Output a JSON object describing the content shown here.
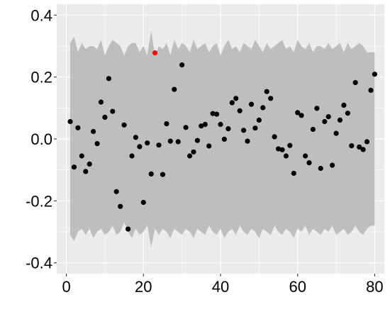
{
  "chart_data": {
    "type": "scatter",
    "title": "",
    "xlabel": "",
    "ylabel": "",
    "xlim": [
      -2.5,
      82.5
    ],
    "ylim": [
      -0.435,
      0.435
    ],
    "grid": true,
    "x_ticks": [
      0,
      20,
      40,
      60,
      80
    ],
    "x_tick_labels": [
      "0",
      "20",
      "40",
      "60",
      "80"
    ],
    "y_ticks": [
      -0.4,
      -0.2,
      0.0,
      0.2,
      0.4
    ],
    "y_tick_labels": [
      "-0.4",
      "-0.2",
      "0.0",
      "0.2",
      "0.4"
    ],
    "colors": {
      "panel": "#ebebeb",
      "grid": "#ffffff",
      "band": "#bebebe",
      "point": "#000000",
      "highlight": "#ff0000"
    },
    "band": {
      "x": [
        1,
        2,
        3,
        4,
        5,
        6,
        7,
        8,
        9,
        10,
        11,
        12,
        13,
        14,
        15,
        16,
        17,
        18,
        19,
        20,
        21,
        22,
        23,
        24,
        25,
        26,
        27,
        28,
        29,
        30,
        31,
        32,
        33,
        34,
        35,
        36,
        37,
        38,
        39,
        40,
        41,
        42,
        43,
        44,
        45,
        46,
        47,
        48,
        49,
        50,
        51,
        52,
        53,
        54,
        55,
        56,
        57,
        58,
        59,
        60,
        61,
        62,
        63,
        64,
        65,
        66,
        67,
        68,
        69,
        70,
        71,
        72,
        73,
        74,
        75,
        76,
        77,
        78,
        79,
        80
      ],
      "upper": [
        0.31,
        0.33,
        0.28,
        0.31,
        0.29,
        0.3,
        0.3,
        0.29,
        0.32,
        0.27,
        0.3,
        0.32,
        0.31,
        0.3,
        0.27,
        0.3,
        0.31,
        0.31,
        0.28,
        0.3,
        0.27,
        0.35,
        0.27,
        0.3,
        0.29,
        0.31,
        0.27,
        0.32,
        0.29,
        0.31,
        0.3,
        0.28,
        0.32,
        0.29,
        0.3,
        0.31,
        0.28,
        0.3,
        0.31,
        0.27,
        0.3,
        0.32,
        0.29,
        0.3,
        0.28,
        0.31,
        0.3,
        0.29,
        0.32,
        0.3,
        0.28,
        0.31,
        0.29,
        0.3,
        0.31,
        0.32,
        0.29,
        0.3,
        0.28,
        0.32,
        0.3,
        0.29,
        0.31,
        0.28,
        0.3,
        0.3,
        0.29,
        0.31,
        0.29,
        0.3,
        0.31,
        0.28,
        0.31,
        0.29,
        0.3,
        0.31,
        0.3,
        0.28,
        0.28,
        0.28
      ],
      "lower": [
        -0.31,
        -0.33,
        -0.3,
        -0.29,
        -0.31,
        -0.29,
        -0.32,
        -0.3,
        -0.29,
        -0.31,
        -0.3,
        -0.28,
        -0.31,
        -0.3,
        -0.27,
        -0.3,
        -0.32,
        -0.29,
        -0.31,
        -0.3,
        -0.28,
        -0.35,
        -0.29,
        -0.31,
        -0.29,
        -0.3,
        -0.32,
        -0.29,
        -0.3,
        -0.31,
        -0.29,
        -0.3,
        -0.32,
        -0.29,
        -0.3,
        -0.31,
        -0.28,
        -0.3,
        -0.31,
        -0.29,
        -0.32,
        -0.3,
        -0.29,
        -0.31,
        -0.28,
        -0.3,
        -0.31,
        -0.29,
        -0.3,
        -0.32,
        -0.29,
        -0.3,
        -0.31,
        -0.28,
        -0.3,
        -0.31,
        -0.29,
        -0.3,
        -0.32,
        -0.29,
        -0.3,
        -0.28,
        -0.31,
        -0.29,
        -0.3,
        -0.31,
        -0.29,
        -0.3,
        -0.28,
        -0.31,
        -0.3,
        -0.29,
        -0.31,
        -0.3,
        -0.28,
        -0.3,
        -0.31,
        -0.29,
        -0.28,
        -0.28
      ]
    },
    "points": {
      "x": [
        1,
        2,
        3,
        4,
        5,
        6,
        7,
        8,
        9,
        10,
        11,
        12,
        13,
        14,
        15,
        16,
        17,
        18,
        19,
        20,
        21,
        22,
        23,
        24,
        25,
        26,
        27,
        28,
        29,
        30,
        31,
        32,
        33,
        34,
        35,
        36,
        37,
        38,
        39,
        40,
        41,
        42,
        43,
        44,
        45,
        46,
        47,
        48,
        49,
        50,
        51,
        52,
        53,
        54,
        55,
        56,
        57,
        58,
        59,
        60,
        61,
        62,
        63,
        64,
        65,
        66,
        67,
        68,
        69,
        70,
        71,
        72,
        73,
        74,
        75,
        76,
        77,
        78,
        79,
        80
      ],
      "y": [
        0.056,
        -0.091,
        0.036,
        -0.055,
        -0.105,
        -0.081,
        0.024,
        -0.015,
        0.119,
        0.07,
        0.195,
        0.089,
        -0.17,
        -0.218,
        0.045,
        -0.291,
        -0.055,
        0.005,
        -0.025,
        -0.205,
        -0.013,
        -0.113,
        0.278,
        -0.02,
        -0.115,
        0.049,
        -0.007,
        0.16,
        -0.009,
        0.239,
        0.037,
        -0.055,
        -0.042,
        -0.005,
        0.042,
        0.047,
        -0.023,
        0.082,
        0.08,
        0.047,
        -0.001,
        0.033,
        0.117,
        0.131,
        0.091,
        0.028,
        -0.007,
        0.112,
        0.035,
        0.061,
        0.101,
        0.153,
        0.131,
        0.007,
        -0.032,
        -0.035,
        -0.055,
        -0.021,
        -0.111,
        0.085,
        0.076,
        -0.055,
        -0.077,
        0.031,
        0.099,
        -0.095,
        0.056,
        0.072,
        -0.085,
        0.018,
        0.061,
        0.109,
        0.083,
        -0.022,
        0.182,
        -0.026,
        -0.034,
        -0.009,
        0.157,
        0.209
      ],
      "highlight_index": 22
    }
  }
}
